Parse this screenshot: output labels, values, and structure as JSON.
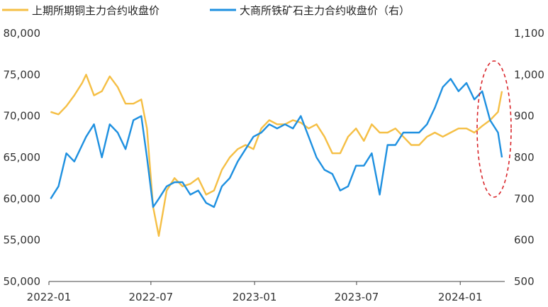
{
  "chart_data": {
    "type": "line",
    "legend": [
      {
        "label": "上期所期铜主力合约收盘价",
        "color": "#F5BF45"
      },
      {
        "label": "大商所铁矿石主力合约收盘价（右）",
        "color": "#1E90E0"
      }
    ],
    "legend_position": "top-left",
    "grid": false,
    "x_tick_labels": [
      "2022-01",
      "2022-07",
      "2023-01",
      "2023-07",
      "2024-01"
    ],
    "y_left": {
      "ylim": [
        50000,
        80000
      ],
      "tick_labels": [
        "80,000",
        "75,000",
        "70,000",
        "65,000",
        "60,000",
        "55,000",
        "50,000"
      ]
    },
    "y_right": {
      "ylim": [
        500,
        1100
      ],
      "tick_labels": [
        "1,100",
        "1,000",
        "900",
        "800",
        "700",
        "600",
        "500"
      ]
    },
    "series": [
      {
        "name": "上期所期铜主力合约收盘价",
        "axis": "left",
        "color": "#F5BF45",
        "x": [
          "2022-01-04",
          "2022-01-18",
          "2022-02-01",
          "2022-02-15",
          "2022-03-01",
          "2022-03-08",
          "2022-03-22",
          "2022-04-05",
          "2022-04-19",
          "2022-05-03",
          "2022-05-17",
          "2022-05-31",
          "2022-06-14",
          "2022-06-24",
          "2022-07-05",
          "2022-07-15",
          "2022-07-29",
          "2022-08-12",
          "2022-08-26",
          "2022-09-09",
          "2022-09-23",
          "2022-10-07",
          "2022-10-21",
          "2022-11-04",
          "2022-11-18",
          "2022-12-02",
          "2022-12-16",
          "2022-12-30",
          "2023-01-13",
          "2023-01-27",
          "2023-02-10",
          "2023-02-24",
          "2023-03-10",
          "2023-03-24",
          "2023-04-07",
          "2023-04-21",
          "2023-05-05",
          "2023-05-19",
          "2023-06-02",
          "2023-06-16",
          "2023-06-30",
          "2023-07-14",
          "2023-07-28",
          "2023-08-11",
          "2023-08-25",
          "2023-09-08",
          "2023-09-22",
          "2023-10-06",
          "2023-10-20",
          "2023-11-03",
          "2023-11-17",
          "2023-12-01",
          "2023-12-15",
          "2023-12-29",
          "2024-01-12",
          "2024-01-26",
          "2024-02-09",
          "2024-02-23",
          "2024-03-08",
          "2024-03-15"
        ],
        "values": [
          70500,
          70200,
          71200,
          72500,
          74000,
          75000,
          72500,
          73000,
          74800,
          73500,
          71500,
          71500,
          72000,
          68500,
          59000,
          55500,
          61000,
          62500,
          61500,
          61800,
          62500,
          60500,
          61000,
          63500,
          65000,
          66000,
          66500,
          66000,
          68500,
          69500,
          69000,
          69000,
          69500,
          69200,
          68500,
          69000,
          67500,
          65500,
          65500,
          67500,
          68500,
          67000,
          69000,
          68000,
          68000,
          68500,
          67500,
          66500,
          66500,
          67500,
          68000,
          67500,
          68000,
          68500,
          68500,
          68000,
          68800,
          69500,
          70500,
          73000
        ]
      },
      {
        "name": "大商所铁矿石主力合约收盘价（右）",
        "axis": "right",
        "color": "#1E90E0",
        "x": [
          "2022-01-04",
          "2022-01-18",
          "2022-02-01",
          "2022-02-15",
          "2022-03-01",
          "2022-03-08",
          "2022-03-22",
          "2022-04-05",
          "2022-04-19",
          "2022-05-03",
          "2022-05-17",
          "2022-05-31",
          "2022-06-14",
          "2022-06-24",
          "2022-07-05",
          "2022-07-15",
          "2022-07-29",
          "2022-08-12",
          "2022-08-26",
          "2022-09-09",
          "2022-09-23",
          "2022-10-07",
          "2022-10-21",
          "2022-11-04",
          "2022-11-18",
          "2022-12-02",
          "2022-12-16",
          "2022-12-30",
          "2023-01-13",
          "2023-01-27",
          "2023-02-10",
          "2023-02-24",
          "2023-03-10",
          "2023-03-24",
          "2023-04-07",
          "2023-04-21",
          "2023-05-05",
          "2023-05-19",
          "2023-06-02",
          "2023-06-16",
          "2023-06-30",
          "2023-07-14",
          "2023-07-28",
          "2023-08-11",
          "2023-08-25",
          "2023-09-08",
          "2023-09-22",
          "2023-10-06",
          "2023-10-20",
          "2023-11-03",
          "2023-11-17",
          "2023-12-01",
          "2023-12-15",
          "2023-12-29",
          "2024-01-12",
          "2024-01-26",
          "2024-02-09",
          "2024-02-23",
          "2024-03-08",
          "2024-03-15"
        ],
        "values": [
          700,
          730,
          810,
          790,
          830,
          850,
          880,
          800,
          880,
          860,
          820,
          890,
          900,
          800,
          680,
          700,
          730,
          740,
          740,
          710,
          720,
          690,
          680,
          730,
          750,
          790,
          820,
          850,
          860,
          880,
          870,
          880,
          870,
          900,
          850,
          800,
          770,
          760,
          720,
          730,
          780,
          780,
          810,
          710,
          830,
          830,
          860,
          860,
          860,
          880,
          920,
          970,
          990,
          960,
          980,
          940,
          960,
          890,
          860,
          800
        ]
      }
    ]
  }
}
